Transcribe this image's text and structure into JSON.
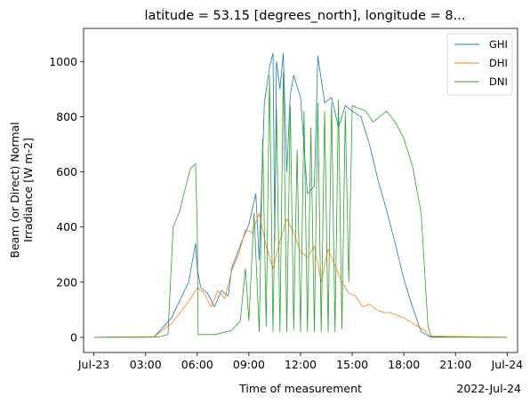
{
  "chart_data": {
    "type": "line",
    "title": "latitude = 53.15 [degrees_north], longitude = 8...",
    "xlabel": "Time of measurement",
    "ylabel": [
      "Beam (or Direct) Normal",
      "Irradiance [W m-2]"
    ],
    "x_unit": "hour of 2022-07-23",
    "xlim": [
      -0.6,
      24.6
    ],
    "ylim": [
      -55,
      1120
    ],
    "xticks": [
      {
        "value": 0,
        "label": "Jul-23"
      },
      {
        "value": 3,
        "label": "03:00"
      },
      {
        "value": 6,
        "label": "06:00"
      },
      {
        "value": 9,
        "label": "09:00"
      },
      {
        "value": 12,
        "label": "12:00"
      },
      {
        "value": 15,
        "label": "15:00"
      },
      {
        "value": 18,
        "label": "18:00"
      },
      {
        "value": 21,
        "label": "21:00"
      },
      {
        "value": 24,
        "label": "Jul-24"
      }
    ],
    "x_offset_label": "2022-Jul-24",
    "yticks": [
      0,
      200,
      400,
      600,
      800,
      1000
    ],
    "grid": false,
    "legend": "top-right",
    "series": [
      {
        "name": "GHI",
        "color": "#1f77b4",
        "x": [
          0,
          3.5,
          4.5,
          5.5,
          5.9,
          6.0,
          6.2,
          6.6,
          7.0,
          7.4,
          7.8,
          8.0,
          8.6,
          9.0,
          9.4,
          9.6,
          9.9,
          10.2,
          10.4,
          10.5,
          10.6,
          10.8,
          11.0,
          11.2,
          11.4,
          11.6,
          12.0,
          12.4,
          12.8,
          13.0,
          13.4,
          13.8,
          14.2,
          14.6,
          15.0,
          15.5,
          16.0,
          16.5,
          17.0,
          17.5,
          18.0,
          18.5,
          19.0,
          19.5,
          24
        ],
        "y": [
          0,
          2,
          70,
          200,
          340,
          250,
          180,
          160,
          110,
          170,
          150,
          250,
          350,
          410,
          520,
          280,
          850,
          980,
          1030,
          350,
          1000,
          900,
          1030,
          600,
          880,
          950,
          870,
          520,
          550,
          1020,
          850,
          870,
          760,
          840,
          820,
          800,
          700,
          570,
          460,
          340,
          210,
          110,
          20,
          2,
          0
        ]
      },
      {
        "name": "DHI",
        "color": "#ff7f0e",
        "x": [
          0,
          3.5,
          4.5,
          5.5,
          6.0,
          6.4,
          6.8,
          7.2,
          7.6,
          8.0,
          8.4,
          8.8,
          9.2,
          9.6,
          10.0,
          10.4,
          10.8,
          11.2,
          11.6,
          12.0,
          12.4,
          12.8,
          13.2,
          13.6,
          14.0,
          14.4,
          14.8,
          15.2,
          15.6,
          16.0,
          16.4,
          16.8,
          17.2,
          17.6,
          18.0,
          18.4,
          18.8,
          19.2,
          19.5,
          24
        ],
        "y": [
          0,
          2,
          50,
          130,
          180,
          160,
          110,
          170,
          140,
          240,
          300,
          390,
          380,
          450,
          330,
          250,
          350,
          430,
          380,
          310,
          290,
          330,
          200,
          320,
          260,
          200,
          160,
          150,
          110,
          120,
          100,
          90,
          90,
          80,
          70,
          55,
          40,
          25,
          5,
          0
        ]
      },
      {
        "name": "DNI",
        "color": "#2ca02c",
        "x": [
          0,
          3.0,
          3.8,
          4.3,
          4.6,
          5.0,
          5.3,
          5.6,
          5.9,
          6.0,
          6.05,
          7.0,
          8.0,
          8.5,
          8.8,
          9.0,
          9.3,
          9.6,
          9.8,
          10.0,
          10.2,
          10.4,
          10.6,
          10.8,
          11.0,
          11.2,
          11.4,
          11.6,
          11.8,
          12.0,
          12.2,
          12.4,
          12.6,
          12.8,
          13.0,
          13.2,
          13.4,
          13.6,
          13.8,
          14.0,
          14.2,
          14.4,
          14.6,
          14.8,
          15.0,
          15.4,
          15.8,
          16.2,
          16.6,
          17.0,
          17.5,
          18.0,
          18.5,
          19.0,
          19.4,
          19.6,
          24
        ],
        "y": [
          0,
          0,
          2,
          10,
          400,
          460,
          540,
          610,
          630,
          400,
          10,
          10,
          25,
          60,
          250,
          60,
          450,
          20,
          720,
          40,
          950,
          20,
          830,
          20,
          960,
          20,
          840,
          30,
          680,
          20,
          820,
          20,
          760,
          20,
          850,
          20,
          820,
          20,
          850,
          20,
          860,
          30,
          820,
          200,
          840,
          830,
          820,
          780,
          800,
          820,
          780,
          720,
          620,
          450,
          40,
          0,
          0
        ]
      }
    ]
  }
}
